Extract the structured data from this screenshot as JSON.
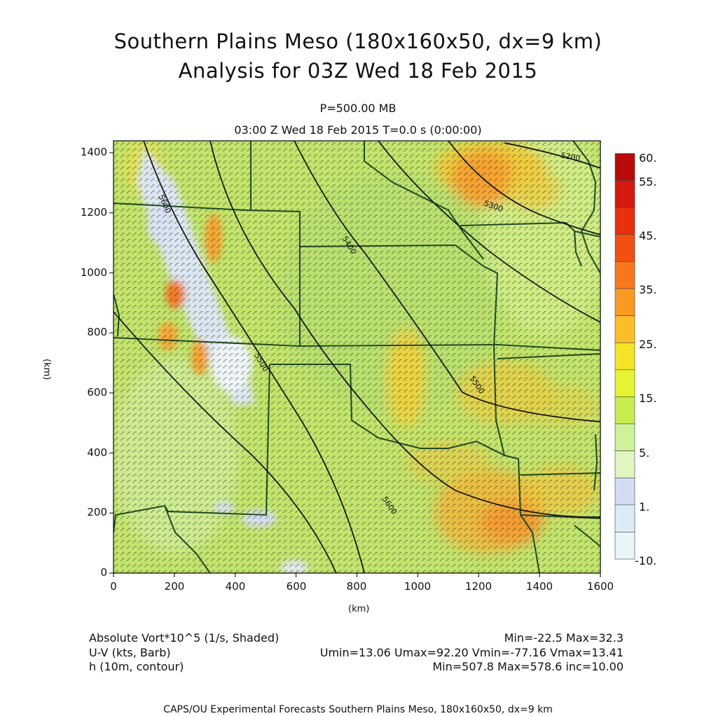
{
  "header": {
    "title": "Southern Plains Meso (180x160x50, dx=9 km)",
    "subtitle": "Analysis for 03Z Wed 18 Feb 2015",
    "level": "P=500.00 MB",
    "time": "03:00 Z Wed 18 Feb 2015    T=0.0 s (0:00:00)"
  },
  "axes": {
    "x_ticks": [
      "0",
      "200",
      "400",
      "600",
      "800",
      "1000",
      "1200",
      "1400",
      "1600"
    ],
    "y_ticks": [
      "0",
      "200",
      "400",
      "600",
      "800",
      "1000",
      "1200",
      "1400"
    ],
    "x_label": "(km)",
    "y_label": "(km)"
  },
  "colorbar": {
    "labels": [
      "60.",
      "55.",
      "45.",
      "35.",
      "25.",
      "15.",
      "5.",
      "1.",
      "-10."
    ],
    "colors": [
      "#b80a0a",
      "#d41a0c",
      "#e8300d",
      "#f25012",
      "#f7781c",
      "#fa9a22",
      "#fcbe26",
      "#f4e428",
      "#e4f432",
      "#c8ec50",
      "#cdf29a",
      "#dff6c0",
      "#d4dcf4",
      "#dcecf6",
      "#e8f6fa"
    ]
  },
  "contour_labels": [
    "5600",
    "5500",
    "5400",
    "5500",
    "5600",
    "5300",
    "5200"
  ],
  "legend": {
    "field1": "Absolute Vort*10^5 (1/s, Shaded)",
    "field1_stats": "Min=-22.5 Max=32.3",
    "field2": "U-V (kts, Barb)",
    "field2_stats": "Umin=13.06 Umax=92.20 Vmin=-77.16 Vmax=13.41",
    "field3": "h (10m, contour)",
    "field3_stats": "Min=507.8 Max=578.6 inc=10.00"
  },
  "footer": "CAPS/OU Experimental Forecasts  Southern Plains Meso, 180x160x50, dx=9 km"
}
